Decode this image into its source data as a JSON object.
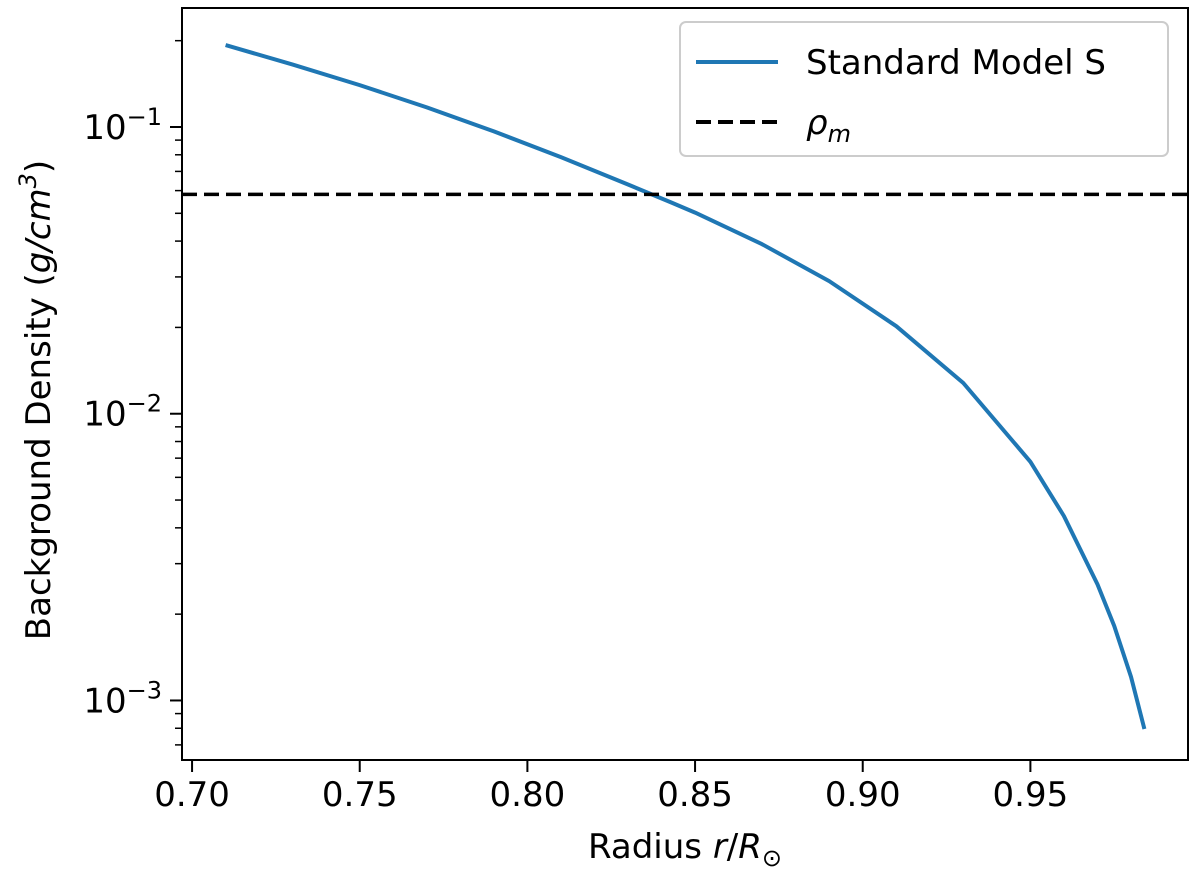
{
  "chart_data": {
    "type": "line",
    "title": "",
    "xlabel": {
      "prefix": "Radius ",
      "var": "r",
      "slash": "/",
      "sym": "R",
      "sub": "⊙"
    },
    "ylabel": {
      "prefix": "Background Density (",
      "math": "g/cm",
      "sup": "3",
      "suffix": ")"
    },
    "x_scale": "linear",
    "y_scale": "log",
    "xlim": [
      0.697,
      0.997
    ],
    "ylim": [
      0.00062,
      0.26
    ],
    "x_ticks": [
      {
        "value": 0.7,
        "label": "0.70"
      },
      {
        "value": 0.75,
        "label": "0.75"
      },
      {
        "value": 0.8,
        "label": "0.80"
      },
      {
        "value": 0.85,
        "label": "0.85"
      },
      {
        "value": 0.9,
        "label": "0.90"
      },
      {
        "value": 0.95,
        "label": "0.95"
      }
    ],
    "y_ticks": [
      {
        "value": 0.1,
        "base": "10",
        "exp": "−1"
      },
      {
        "value": 0.01,
        "base": "10",
        "exp": "−2"
      },
      {
        "value": 0.001,
        "base": "10",
        "exp": "−3"
      }
    ],
    "grid": false,
    "legend_position": "top-right",
    "series": [
      {
        "name": "Standard Model S",
        "style": "solid",
        "color": "#1f77b4",
        "x": [
          0.71,
          0.73,
          0.75,
          0.77,
          0.79,
          0.81,
          0.83,
          0.843,
          0.85,
          0.87,
          0.89,
          0.91,
          0.93,
          0.95,
          0.96,
          0.97,
          0.975,
          0.98,
          0.984
        ],
        "y": [
          0.193,
          0.165,
          0.14,
          0.117,
          0.0965,
          0.0785,
          0.063,
          0.0545,
          0.0503,
          0.039,
          0.029,
          0.0202,
          0.0128,
          0.0068,
          0.0044,
          0.00254,
          0.00182,
          0.00121,
          0.000795
        ]
      },
      {
        "name": "ρ",
        "name_sub": "m",
        "style": "dashed",
        "color": "#000000",
        "y_const": 0.0582
      }
    ]
  }
}
